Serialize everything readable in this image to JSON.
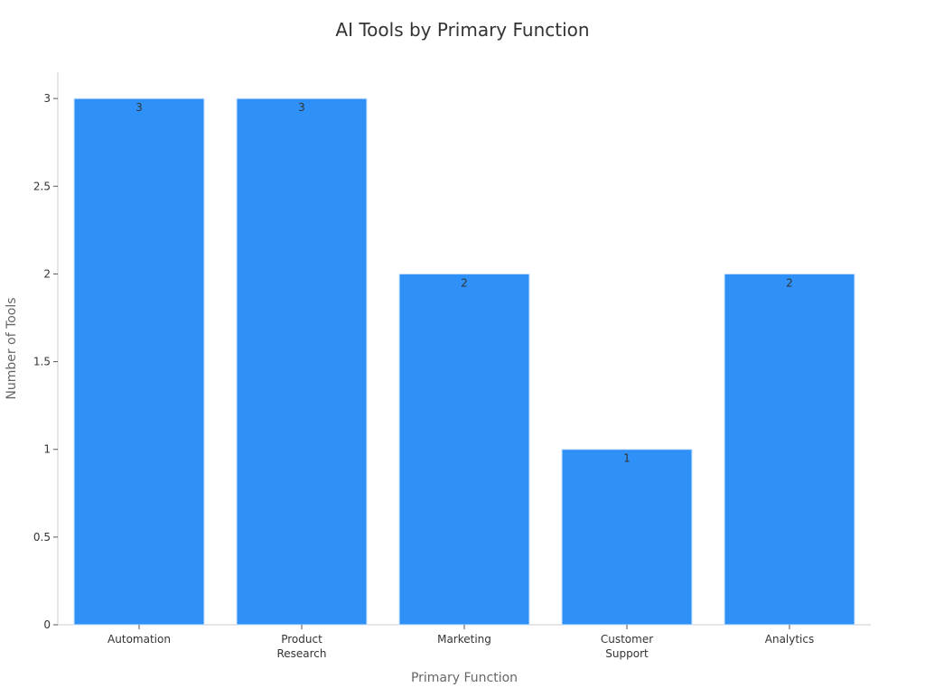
{
  "chart_data": {
    "type": "bar",
    "title": "AI Tools by Primary Function",
    "xlabel": "Primary Function",
    "ylabel": "Number of Tools",
    "categories": [
      "Automation",
      "Product Research",
      "Marketing",
      "Customer Support",
      "Analytics"
    ],
    "category_tick_lines": [
      [
        "Automation"
      ],
      [
        "Product",
        "Research"
      ],
      [
        "Marketing"
      ],
      [
        "Customer",
        "Support"
      ],
      [
        "Analytics"
      ]
    ],
    "values": [
      3,
      3,
      2,
      1,
      2
    ],
    "data_labels": [
      "3",
      "3",
      "2",
      "1",
      "2"
    ],
    "ylim": [
      0,
      3.15
    ],
    "yticks": [
      0,
      0.5,
      1,
      1.5,
      2,
      2.5,
      3
    ],
    "ytick_labels": [
      "0",
      "0.5",
      "1",
      "1.5",
      "2",
      "2.5",
      "3"
    ],
    "grid": false,
    "legend": "none"
  },
  "colors": {
    "bar": "#2f91f7",
    "bar_edge": "#cfe3fb",
    "axis": "#cccccc",
    "title": "#333333",
    "axis_label": "#666666",
    "tick_label": "#333333"
  }
}
